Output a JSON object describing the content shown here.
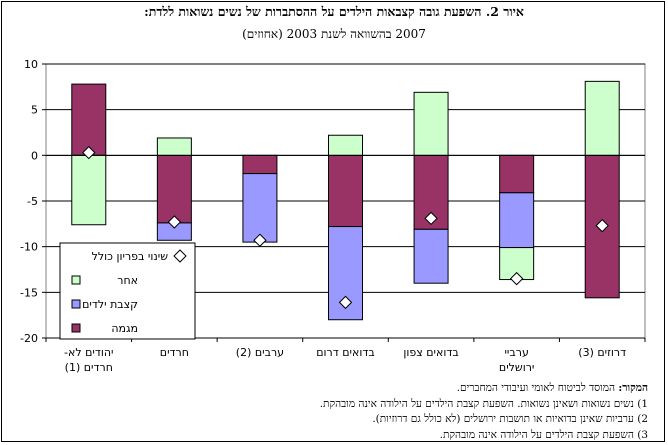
{
  "title": "איור 2. השפעת גובה קצבאות הילדים על ההסתברות של נשים נשואות ללדת:",
  "subtitle": "2007 בהשוואה לשנת 2003 (אחוזים)",
  "chart_data": {
    "type": "bar",
    "stacking": "waterfall",
    "ylim": [
      -20,
      10
    ],
    "yticks": [
      10,
      5,
      0,
      -5,
      -10,
      -15,
      -20
    ],
    "grid": true,
    "legend_position": "left-bottom",
    "categories": [
      "יהודים לא-\nחרדים (1)",
      "חרדים",
      "ערבים (2)",
      "בדואים דרום",
      "בדואים צפון",
      "ערביי\nירושלים",
      "דרוזים (3)"
    ],
    "series": [
      {
        "name": "מגמה",
        "color": "#993366",
        "ranges": [
          [
            0,
            7.8
          ],
          [
            -7.4,
            0
          ],
          [
            -2,
            0
          ],
          [
            -7.8,
            0
          ],
          [
            -8.1,
            0
          ],
          [
            -4.1,
            0
          ],
          [
            -15.6,
            0
          ]
        ]
      },
      {
        "name": "קצבת ילדים",
        "color": "#9999ff",
        "ranges": [
          null,
          [
            -9.3,
            -7.4
          ],
          [
            -9.5,
            -2
          ],
          [
            -18,
            -7.8
          ],
          [
            -14,
            -8.1
          ],
          [
            -10.1,
            -4.1
          ],
          null
        ]
      },
      {
        "name": "אחר",
        "color": "#ccffcc",
        "ranges": [
          [
            -7.6,
            0
          ],
          [
            0,
            1.9
          ],
          [
            null,
            null
          ],
          [
            0,
            2.2
          ],
          [
            0,
            6.9
          ],
          [
            -13.6,
            -10.1
          ],
          [
            0,
            8.1
          ]
        ]
      },
      {
        "name": "שינוי בפריון כולל",
        "marker": "diamond",
        "values": [
          0.3,
          -7.3,
          -9.3,
          -16.1,
          -6.9,
          -13.5,
          -7.7
        ]
      }
    ]
  },
  "notes": {
    "source_label": "המקור:",
    "source_text": " המוסד לביטוח לאומי ועיבודי המחברים.",
    "lines": [
      "1) נשים נשואות ושאינן נשואות. השפעת קצבת הילדים על הילודה אינה מובהקת.",
      "2) ערביות שאינן בדואיות או תושבות ירושלים (לא כולל גם דרוזיות).",
      "3) השפעת קצבת הילדים על הילודה אינה מובהקת."
    ]
  }
}
